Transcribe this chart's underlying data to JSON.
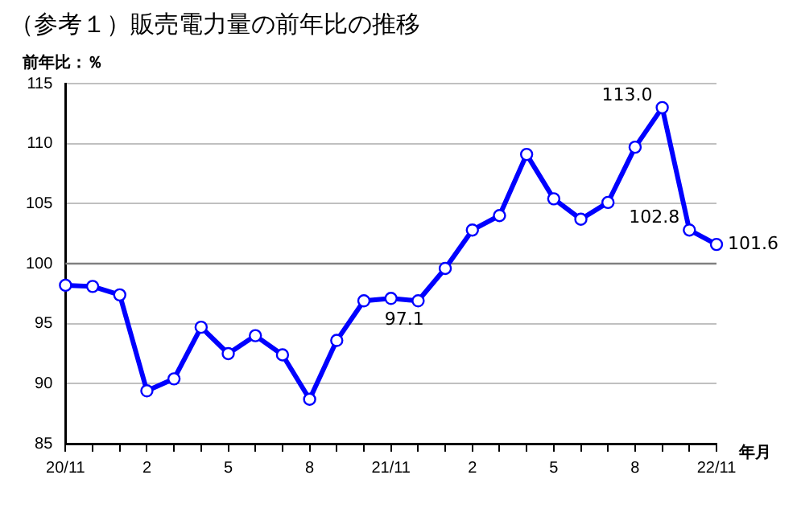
{
  "chart_data": {
    "type": "line",
    "title": "（参考１）販売電力量の前年比の推移",
    "ylabel": "前年比：％",
    "xlabel": "年月",
    "categories": [
      "20/11",
      null,
      null,
      "2",
      null,
      null,
      "5",
      null,
      null,
      "8",
      null,
      null,
      "21/11",
      null,
      null,
      "2",
      null,
      null,
      "5",
      null,
      null,
      "8",
      null,
      null,
      "22/11"
    ],
    "series": [
      {
        "color": "#0000ff",
        "values": [
          98.2,
          98.1,
          97.4,
          89.4,
          90.4,
          94.7,
          92.5,
          94.0,
          92.4,
          88.7,
          93.6,
          96.9,
          97.1,
          96.9,
          99.6,
          102.8,
          104.0,
          109.1,
          105.4,
          103.7,
          105.1,
          109.7,
          113.0,
          102.8,
          101.6
        ],
        "value_labels": [
          null,
          null,
          null,
          null,
          null,
          null,
          null,
          null,
          null,
          null,
          null,
          null,
          "97.1",
          null,
          null,
          null,
          null,
          null,
          null,
          null,
          null,
          null,
          "113.0",
          "102.8",
          "101.6"
        ]
      }
    ],
    "ylim": [
      85,
      115
    ],
    "yticks": [
      85,
      90,
      95,
      100,
      105,
      110,
      115
    ],
    "grid": "y",
    "marker": "circle",
    "line_style": "solid",
    "legend": false,
    "ref_lines": [
      {
        "axis": "y",
        "value": 100,
        "color": "#808080"
      }
    ]
  }
}
